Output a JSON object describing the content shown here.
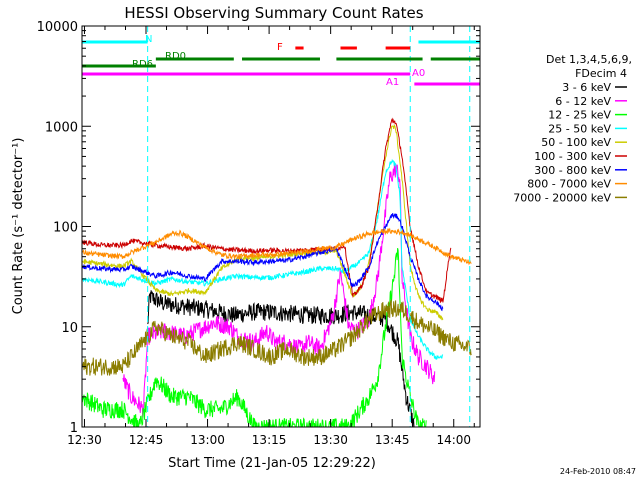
{
  "chart_data": {
    "type": "line",
    "title": "HESSI Observing Summary Count Rates",
    "xlabel": "Start Time (21-Jan-05 12:29:22)",
    "ylabel": "Count Rate (s⁻¹ detector⁻¹)",
    "yscale": "log",
    "ylim": [
      1,
      10000
    ],
    "xlim_minutes": [
      0,
      97
    ],
    "x_ticks": [
      "12:30",
      "12:45",
      "13:00",
      "13:15",
      "13:30",
      "13:45",
      "14:00"
    ],
    "y_ticks": [
      "1",
      "10",
      "100",
      "1000",
      "10000"
    ],
    "grid": false,
    "legend_position": "right",
    "legend_header": [
      "Det 1,3,4,5,6,9,",
      "FDecim 4"
    ],
    "timestamp": "24-Feb-2010 08:47",
    "series": [
      {
        "name": "3 - 6 keV",
        "color": "#000000",
        "values": [
          [
            16,
            10
          ],
          [
            16.5,
            20
          ],
          [
            20,
            17
          ],
          [
            30,
            15
          ],
          [
            37,
            13
          ],
          [
            42,
            14
          ],
          [
            46,
            14
          ],
          [
            55,
            13
          ],
          [
            62,
            13
          ],
          [
            66,
            14
          ],
          [
            70,
            13
          ],
          [
            74,
            12
          ],
          [
            77,
            7
          ],
          [
            79,
            2
          ],
          [
            81,
            1
          ]
        ]
      },
      {
        "name": "6 - 12 keV",
        "color": "#ff00ff",
        "values": [
          [
            10,
            3
          ],
          [
            12,
            2
          ],
          [
            15,
            1.5
          ],
          [
            16,
            8
          ],
          [
            20,
            9
          ],
          [
            25,
            8
          ],
          [
            30,
            10
          ],
          [
            32,
            11
          ],
          [
            36,
            10
          ],
          [
            38,
            8
          ],
          [
            42,
            7
          ],
          [
            45,
            9
          ],
          [
            47,
            7
          ],
          [
            50,
            7
          ],
          [
            53,
            6
          ],
          [
            55,
            7
          ],
          [
            58,
            6
          ],
          [
            61,
            12
          ],
          [
            63,
            35
          ],
          [
            65,
            10
          ],
          [
            67,
            9
          ],
          [
            70,
            12
          ],
          [
            72,
            30
          ],
          [
            75,
            300
          ],
          [
            76.5,
            380
          ],
          [
            77.5,
            300
          ],
          [
            78,
            30
          ],
          [
            80,
            8
          ],
          [
            82,
            5
          ],
          [
            84,
            4
          ],
          [
            86,
            3
          ]
        ]
      },
      {
        "name": "12 - 25 keV",
        "color": "#00ff00",
        "values": [
          [
            0,
            2
          ],
          [
            5,
            1.5
          ],
          [
            10,
            1.5
          ],
          [
            14,
            1
          ],
          [
            18,
            3
          ],
          [
            22,
            2
          ],
          [
            26,
            2
          ],
          [
            30,
            1.5
          ],
          [
            34,
            1.5
          ],
          [
            38,
            2
          ],
          [
            42,
            1
          ],
          [
            46,
            1
          ],
          [
            50,
            1
          ],
          [
            55,
            1
          ],
          [
            60,
            1
          ],
          [
            65,
            1
          ],
          [
            70,
            2
          ],
          [
            72,
            3
          ],
          [
            74,
            10
          ],
          [
            76,
            30
          ],
          [
            77,
            60
          ],
          [
            78,
            5
          ],
          [
            80,
            2
          ],
          [
            82,
            1
          ],
          [
            84,
            1
          ]
        ]
      },
      {
        "name": "25 - 50 keV",
        "color": "#00ffff",
        "values": [
          [
            0,
            30
          ],
          [
            5,
            28
          ],
          [
            10,
            26
          ],
          [
            12,
            32
          ],
          [
            18,
            27
          ],
          [
            22,
            30
          ],
          [
            26,
            28
          ],
          [
            30,
            27
          ],
          [
            34,
            30
          ],
          [
            38,
            32
          ],
          [
            42,
            31
          ],
          [
            46,
            31
          ],
          [
            50,
            33
          ],
          [
            54,
            35
          ],
          [
            58,
            38
          ],
          [
            62,
            38
          ],
          [
            64,
            35
          ],
          [
            68,
            45
          ],
          [
            70,
            55
          ],
          [
            72,
            120
          ],
          [
            74,
            350
          ],
          [
            75.5,
            450
          ],
          [
            76.5,
            400
          ],
          [
            77.5,
            200
          ],
          [
            78,
            40
          ],
          [
            80,
            12
          ],
          [
            82,
            8
          ],
          [
            84,
            6
          ],
          [
            86,
            5
          ],
          [
            88,
            5
          ]
        ]
      },
      {
        "name": "50 - 100 keV",
        "color": "#cccc00",
        "values": [
          [
            0,
            45
          ],
          [
            5,
            42
          ],
          [
            10,
            40
          ],
          [
            12,
            45
          ],
          [
            18,
            23
          ],
          [
            22,
            21
          ],
          [
            26,
            23
          ],
          [
            30,
            22
          ],
          [
            34,
            38
          ],
          [
            38,
            48
          ],
          [
            42,
            48
          ],
          [
            46,
            50
          ],
          [
            50,
            52
          ],
          [
            54,
            55
          ],
          [
            58,
            55
          ],
          [
            62,
            57
          ],
          [
            66,
            20
          ],
          [
            68,
            25
          ],
          [
            70,
            45
          ],
          [
            72,
            150
          ],
          [
            74,
            500
          ],
          [
            75.5,
            1000
          ],
          [
            76.5,
            950
          ],
          [
            78,
            300
          ],
          [
            80,
            40
          ],
          [
            82,
            20
          ],
          [
            84,
            15
          ],
          [
            86,
            14
          ],
          [
            88,
            12
          ]
        ]
      },
      {
        "name": "100 - 300 keV",
        "color": "#cc0000",
        "values": [
          [
            0,
            70
          ],
          [
            5,
            65
          ],
          [
            10,
            65
          ],
          [
            12,
            72
          ],
          [
            18,
            65
          ],
          [
            22,
            62
          ],
          [
            26,
            60
          ],
          [
            30,
            64
          ],
          [
            34,
            60
          ],
          [
            38,
            58
          ],
          [
            42,
            57
          ],
          [
            46,
            58
          ],
          [
            50,
            57
          ],
          [
            54,
            58
          ],
          [
            58,
            60
          ],
          [
            62,
            60
          ],
          [
            64,
            65
          ],
          [
            66,
            20
          ],
          [
            68,
            25
          ],
          [
            70,
            40
          ],
          [
            72,
            150
          ],
          [
            74,
            600
          ],
          [
            75.5,
            1150
          ],
          [
            76.5,
            1100
          ],
          [
            78,
            500
          ],
          [
            80,
            100
          ],
          [
            82,
            40
          ],
          [
            84,
            22
          ],
          [
            86,
            20
          ],
          [
            88,
            18
          ],
          [
            90,
            70
          ]
        ]
      },
      {
        "name": "300 - 800 keV",
        "color": "#0000ff",
        "values": [
          [
            0,
            40
          ],
          [
            5,
            38
          ],
          [
            10,
            37
          ],
          [
            12,
            40
          ],
          [
            18,
            32
          ],
          [
            22,
            35
          ],
          [
            26,
            32
          ],
          [
            30,
            30
          ],
          [
            34,
            45
          ],
          [
            38,
            45
          ],
          [
            42,
            44
          ],
          [
            46,
            45
          ],
          [
            50,
            46
          ],
          [
            54,
            50
          ],
          [
            58,
            55
          ],
          [
            62,
            60
          ],
          [
            66,
            25
          ],
          [
            68,
            30
          ],
          [
            70,
            40
          ],
          [
            72,
            70
          ],
          [
            74,
            100
          ],
          [
            75.5,
            130
          ],
          [
            77,
            125
          ],
          [
            78,
            100
          ],
          [
            80,
            50
          ],
          [
            82,
            30
          ],
          [
            84,
            20
          ],
          [
            86,
            18
          ],
          [
            88,
            15
          ]
        ]
      },
      {
        "name": "800 - 7000 keV",
        "color": "#ff8c00",
        "values": [
          [
            0,
            55
          ],
          [
            5,
            52
          ],
          [
            10,
            50
          ],
          [
            12,
            55
          ],
          [
            18,
            70
          ],
          [
            22,
            85
          ],
          [
            24,
            86
          ],
          [
            26,
            78
          ],
          [
            30,
            62
          ],
          [
            34,
            52
          ],
          [
            38,
            50
          ],
          [
            42,
            52
          ],
          [
            46,
            52
          ],
          [
            50,
            54
          ],
          [
            54,
            56
          ],
          [
            58,
            60
          ],
          [
            62,
            62
          ],
          [
            66,
            75
          ],
          [
            70,
            85
          ],
          [
            74,
            90
          ],
          [
            78,
            88
          ],
          [
            82,
            75
          ],
          [
            86,
            62
          ],
          [
            90,
            50
          ],
          [
            95,
            43
          ]
        ]
      },
      {
        "name": "7000 - 20000 keV",
        "color": "#8b7d00",
        "values": [
          [
            0,
            4
          ],
          [
            5,
            4
          ],
          [
            10,
            4
          ],
          [
            12,
            5
          ],
          [
            18,
            10
          ],
          [
            22,
            8
          ],
          [
            26,
            7
          ],
          [
            30,
            5
          ],
          [
            34,
            6
          ],
          [
            38,
            7
          ],
          [
            42,
            6
          ],
          [
            46,
            5
          ],
          [
            50,
            6
          ],
          [
            54,
            5
          ],
          [
            58,
            5
          ],
          [
            62,
            6
          ],
          [
            66,
            8
          ],
          [
            70,
            12
          ],
          [
            74,
            15
          ],
          [
            78,
            15
          ],
          [
            82,
            11
          ],
          [
            86,
            9
          ],
          [
            90,
            7
          ],
          [
            95,
            6
          ]
        ]
      }
    ],
    "flags": [
      {
        "label": "N",
        "color": "#00ffff",
        "segments": [
          [
            0,
            16
          ],
          [
            82,
            97
          ]
        ]
      },
      {
        "label": "RD6",
        "color": "#008000",
        "segments": [
          [
            0,
            18
          ]
        ]
      },
      {
        "label": "RD0",
        "color": "#008000",
        "segments": [
          [
            18,
            37
          ],
          [
            39,
            58
          ],
          [
            62,
            83
          ],
          [
            85,
            97
          ]
        ]
      },
      {
        "label": "F",
        "color": "#ff0000",
        "segments": [
          [
            52,
            54
          ],
          [
            63,
            67
          ],
          [
            74,
            80
          ]
        ]
      },
      {
        "label": "A0",
        "color": "#ff00ff",
        "segments": [
          [
            0,
            80
          ]
        ]
      },
      {
        "label": "A1",
        "color": "#ff00ff",
        "segments": [
          [
            81,
            97
          ]
        ]
      }
    ],
    "vlines": [
      {
        "x": 16,
        "color": "#00ffff"
      },
      {
        "x": 80,
        "color": "#00ffff"
      },
      {
        "x": 94.5,
        "color": "#00ffff"
      }
    ]
  }
}
